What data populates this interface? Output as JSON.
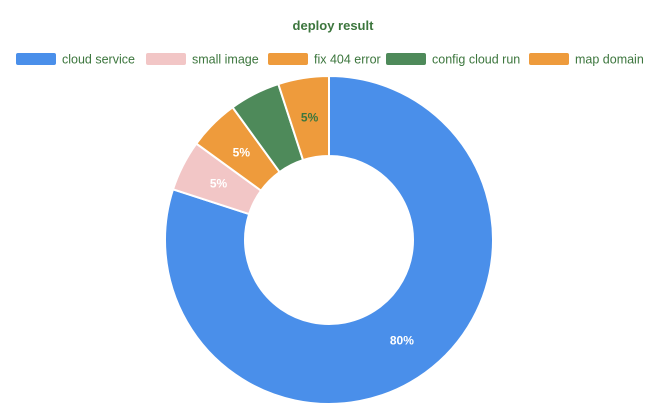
{
  "colors": {
    "text": "#3c763d",
    "background": "#ffffff",
    "slice_border": "#ffffff"
  },
  "chart_data": {
    "type": "pie",
    "variant": "donut",
    "title": "deploy result",
    "legend_position": "top",
    "slices": [
      {
        "label": "cloud service",
        "value": 80,
        "display": "80%",
        "color": "#4a8fea",
        "label_color": "#ffffff"
      },
      {
        "label": "small image",
        "value": 5,
        "display": "5%",
        "color": "#f2c6c6",
        "label_color": "#ffffff"
      },
      {
        "label": "fix 404 error",
        "value": 5,
        "display": "5%",
        "color": "#ee9b3c",
        "label_color": "#ffffff"
      },
      {
        "label": "config cloud run",
        "value": 5,
        "display": "",
        "color": "#4e8a5a",
        "label_color": "#ffffff"
      },
      {
        "label": "map domain",
        "value": 5,
        "display": "5%",
        "color": "#ee9b3c",
        "label_color": "#3c763d"
      }
    ]
  }
}
